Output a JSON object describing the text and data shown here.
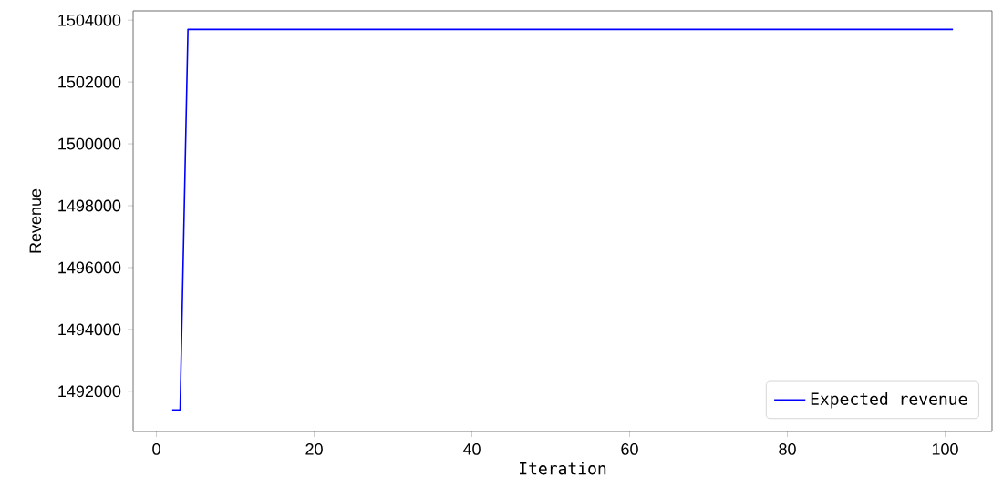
{
  "chart_data": {
    "type": "line",
    "xlabel": "Iteration",
    "ylabel": "Revenue",
    "series": [
      {
        "name": "Expected revenue",
        "color": "#0000ff",
        "x": [
          2,
          3,
          4,
          101
        ],
        "values": [
          1491400,
          1491400,
          1503700,
          1503700
        ]
      }
    ],
    "xlim": [
      -2.95,
      105.95
    ],
    "ylim": [
      1490700,
      1504300
    ],
    "xticks": [
      0,
      20,
      40,
      60,
      80,
      100
    ],
    "yticks": [
      1492000,
      1494000,
      1496000,
      1498000,
      1500000,
      1502000,
      1504000
    ],
    "legend": "bottom right",
    "grid": false,
    "marker": "none",
    "line_style": "solid"
  }
}
